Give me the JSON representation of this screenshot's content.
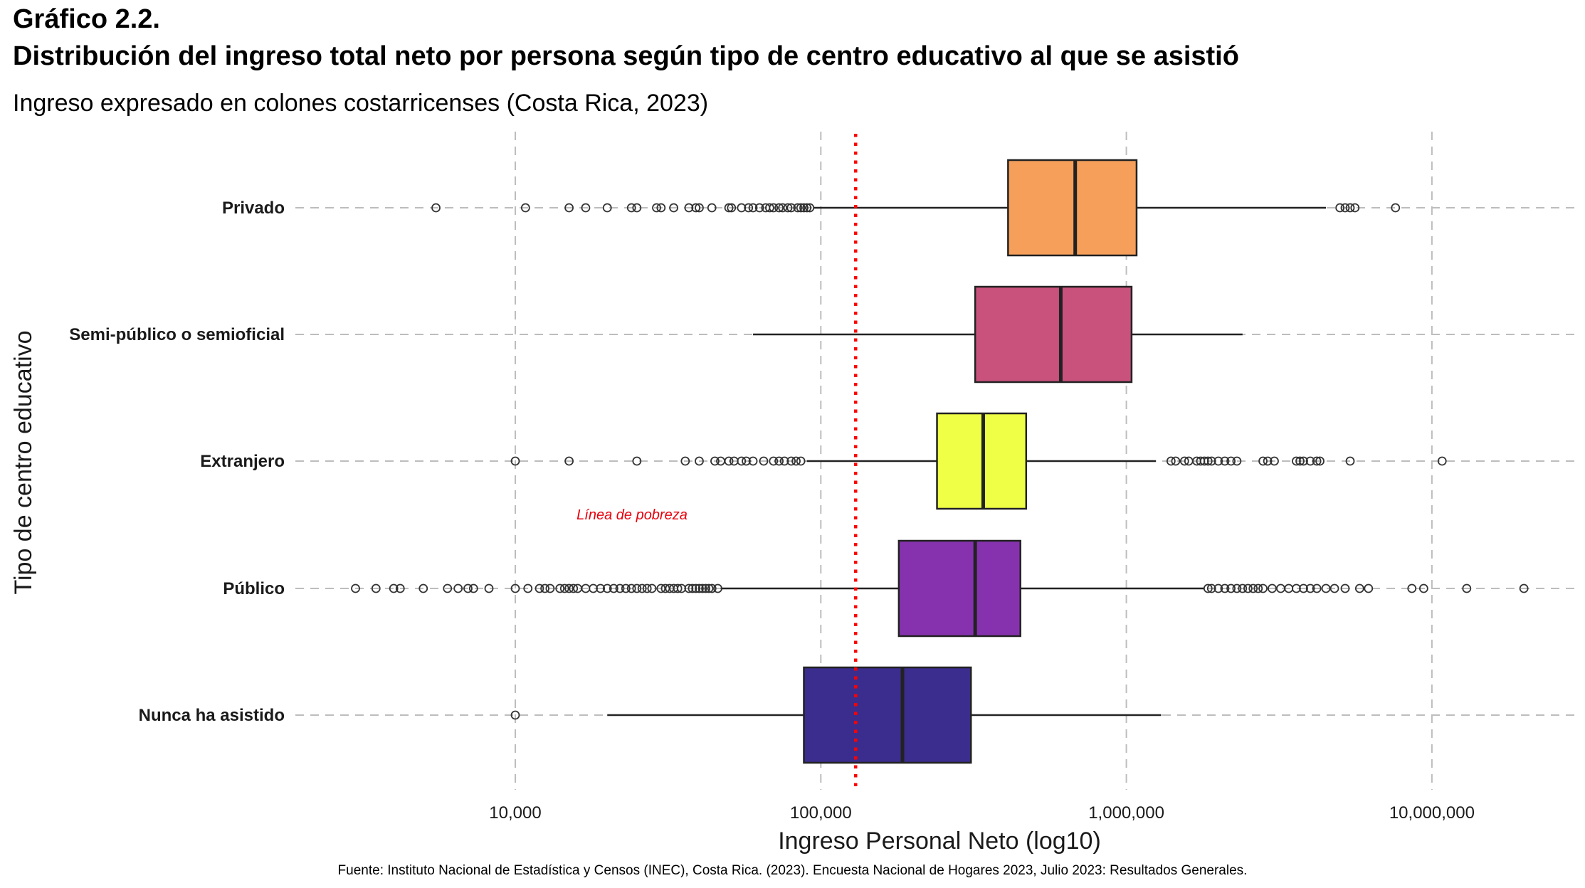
{
  "title_line1": "Gráfico 2.2.",
  "title_line2": "Distribución del ingreso total neto por persona según tipo de centro educativo al que se asistió",
  "subtitle": "Ingreso expresado en colones costarricenses (Costa Rica, 2023)",
  "caption": "Fuente: Instituto Nacional de Estadística y Censos (INEC), Costa Rica. (2023). Encuesta Nacional de Hogares 2023, Julio 2023: Resultados Generales.",
  "chart_data": {
    "type": "boxplot",
    "orientation": "horizontal",
    "x_scale": "log10",
    "xlabel": "Ingreso Personal Neto (log10)",
    "ylabel": "Tipo de centro educativo",
    "xlim": [
      1600,
      35000000
    ],
    "xticks": [
      10000,
      100000,
      1000000,
      10000000
    ],
    "xtick_labels": [
      "10,000",
      "100,000",
      "1,000,000",
      "10,000,000"
    ],
    "grid": "dashed",
    "reference_line": {
      "value": 130000,
      "label": "Línea de pobreza",
      "color": "#ff0000",
      "style": "dotted"
    },
    "categories": [
      "Privado",
      "Semi-público o semioficial",
      "Extranjero",
      "Público",
      "Nunca ha asistido"
    ],
    "boxes": [
      {
        "category": "Privado",
        "color": "#f59f5a",
        "whisker_low": 95000,
        "q1": 410000,
        "median": 680000,
        "q3": 1080000,
        "whisker_high": 4500000,
        "outliers": [
          5500,
          10800,
          15000,
          17000,
          20000,
          24000,
          25000,
          29000,
          30000,
          33000,
          37000,
          39000,
          40000,
          44000,
          50000,
          51000,
          55000,
          58000,
          60000,
          63000,
          66000,
          68000,
          70000,
          73000,
          75000,
          78000,
          80000,
          84000,
          86000,
          88000,
          90000,
          92000,
          5000000,
          5200000,
          5400000,
          5600000,
          7600000
        ]
      },
      {
        "category": "Semi-público o semioficial",
        "color": "#c9527c",
        "whisker_low": 60000,
        "q1": 320000,
        "median": 610000,
        "q3": 1040000,
        "whisker_high": 2400000,
        "outliers": []
      },
      {
        "category": "Extranjero",
        "color": "#eeff45",
        "whisker_low": 90000,
        "q1": 240000,
        "median": 340000,
        "q3": 470000,
        "whisker_high": 1250000,
        "outliers": [
          10000,
          15000,
          25000,
          36000,
          40000,
          45000,
          47000,
          50000,
          52000,
          55000,
          57000,
          60000,
          65000,
          70000,
          73000,
          76000,
          80000,
          83000,
          86000,
          1400000,
          1450000,
          1550000,
          1600000,
          1700000,
          1750000,
          1800000,
          1850000,
          1900000,
          2000000,
          2100000,
          2200000,
          2300000,
          2800000,
          2900000,
          3050000,
          3600000,
          3700000,
          3800000,
          4000000,
          4200000,
          4300000,
          5400000,
          10800000
        ]
      },
      {
        "category": "Público",
        "color": "#8632ae",
        "whisker_low": 47000,
        "q1": 180000,
        "median": 320000,
        "q3": 450000,
        "whisker_high": 1800000,
        "outliers": [
          3000,
          3500,
          4000,
          4200,
          5000,
          6000,
          6500,
          7000,
          7300,
          8200,
          10000,
          11000,
          12000,
          12500,
          13000,
          14000,
          14500,
          15000,
          15500,
          16000,
          17000,
          18000,
          19000,
          20000,
          21000,
          22000,
          23000,
          24000,
          25000,
          26000,
          27000,
          28000,
          30000,
          31000,
          32000,
          33000,
          34000,
          35000,
          37000,
          38000,
          39000,
          40000,
          41000,
          42000,
          43000,
          44000,
          46000,
          1850000,
          1900000,
          2000000,
          2100000,
          2200000,
          2300000,
          2400000,
          2500000,
          2600000,
          2700000,
          2800000,
          3000000,
          3200000,
          3400000,
          3600000,
          3800000,
          4000000,
          4200000,
          4500000,
          4800000,
          5200000,
          5800000,
          6200000,
          8600000,
          9400000,
          13000000,
          20000000
        ]
      },
      {
        "category": "Nunca ha asistido",
        "color": "#3b2d8d",
        "whisker_low": 20000,
        "q1": 88000,
        "median": 185000,
        "q3": 310000,
        "whisker_high": 1300000,
        "outliers": [
          10000
        ]
      }
    ]
  }
}
